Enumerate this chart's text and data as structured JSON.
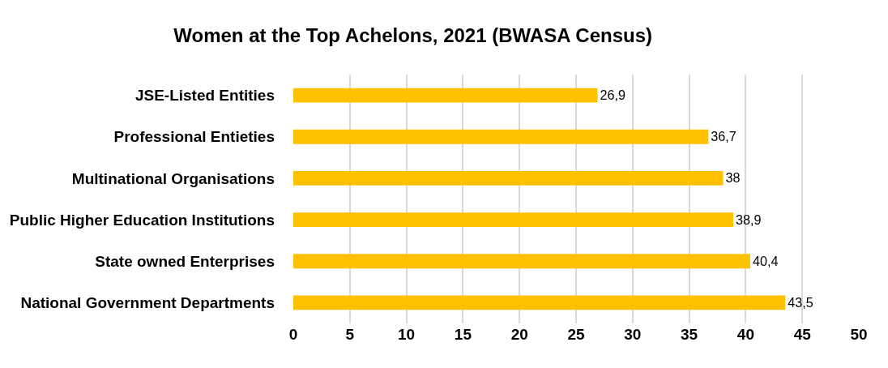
{
  "chart_data": {
    "type": "bar",
    "orientation": "horizontal",
    "title": "Women at the Top Achelons, 2021 (BWASA Census)",
    "categories": [
      "JSE-Listed Entities",
      "Professional Entieties",
      "Multinational Organisations",
      "Public Higher Education Institutions",
      "State owned Enterprises",
      "National Government Departments"
    ],
    "values": [
      26.9,
      36.7,
      38,
      38.9,
      40.4,
      43.5
    ],
    "value_labels": [
      "26,9",
      "36,7",
      "38",
      "38,9",
      "40,4",
      "43,5"
    ],
    "color": "#ffc000",
    "xlim": [
      0,
      50
    ],
    "xticks": [
      0,
      5,
      10,
      15,
      20,
      25,
      30,
      35,
      40,
      45,
      50
    ],
    "grid": "x",
    "legend": false
  }
}
